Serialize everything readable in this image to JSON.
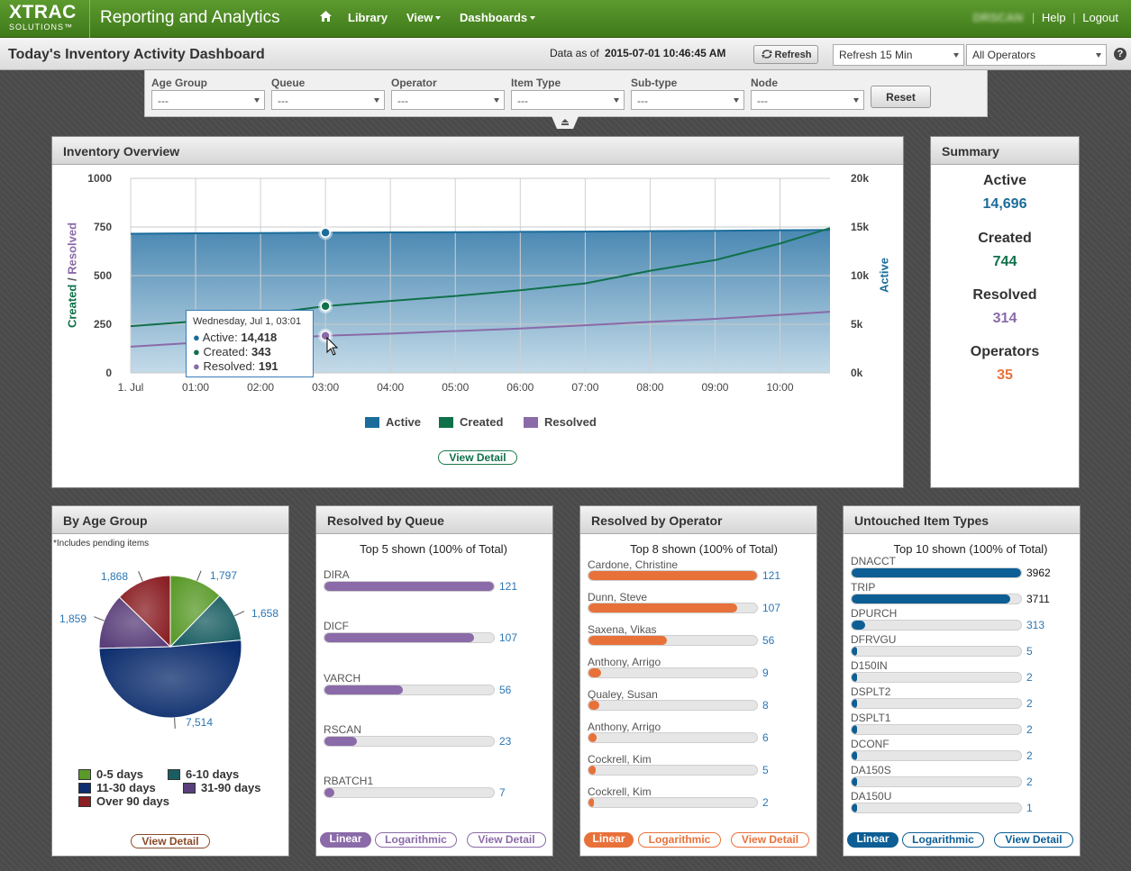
{
  "brand": {
    "line1": "XTRAC",
    "line2": "SOLUTIONS™"
  },
  "app_title": "Reporting and Analytics",
  "nav": {
    "home_icon": "home-icon",
    "library": "Library",
    "view": "View",
    "dashboards": "Dashboards"
  },
  "user": {
    "name": "DRSCAN",
    "help": "Help",
    "logout": "Logout"
  },
  "page_title": "Today's Inventory Activity Dashboard",
  "data_as_of": {
    "label": "Data as of",
    "value": "2015-07-01 10:46:45 AM"
  },
  "refresh_button": "Refresh",
  "refresh_interval": "Refresh 15 Min",
  "operators_select": "All Operators",
  "help_icon": "?",
  "filters": [
    {
      "label": "Age Group",
      "value": "---"
    },
    {
      "label": "Queue",
      "value": "---"
    },
    {
      "label": "Operator",
      "value": "---"
    },
    {
      "label": "Item Type",
      "value": "---"
    },
    {
      "label": "Sub-type",
      "value": "---"
    },
    {
      "label": "Node",
      "value": "---"
    }
  ],
  "reset_button": "Reset",
  "overview": {
    "title": "Inventory Overview",
    "left_axis_label_a": "Created",
    "left_axis_label_sep": " / ",
    "left_axis_label_b": "Resolved",
    "right_axis_label": "Active",
    "left_ticks": [
      "1000",
      "750",
      "500",
      "250",
      "0"
    ],
    "right_ticks": [
      "20k",
      "15k",
      "10k",
      "5k",
      "0k"
    ],
    "x_ticks": [
      "1. Jul",
      "01:00",
      "02:00",
      "03:00",
      "04:00",
      "05:00",
      "06:00",
      "07:00",
      "08:00",
      "09:00",
      "10:00"
    ],
    "legend": [
      "Active",
      "Created",
      "Resolved"
    ],
    "tooltip": {
      "date": "Wednesday, Jul 1, 03:01",
      "active_label": "Active:",
      "active_value": "14,418",
      "created_label": "Created:",
      "created_value": "343",
      "resolved_label": "Resolved:",
      "resolved_value": "191"
    },
    "view_detail": "View Detail"
  },
  "chart_data": [
    {
      "type": "line",
      "x": [
        "00:00",
        "01:00",
        "02:00",
        "03:00",
        "04:00",
        "05:00",
        "06:00",
        "07:00",
        "08:00",
        "09:00",
        "10:00",
        "10:46"
      ],
      "series": [
        {
          "name": "Active",
          "axis": "right",
          "type": "area",
          "values": [
            14300,
            14350,
            14380,
            14418,
            14440,
            14470,
            14500,
            14530,
            14570,
            14610,
            14660,
            14696
          ]
        },
        {
          "name": "Created",
          "axis": "left",
          "values": [
            240,
            265,
            300,
            343,
            370,
            395,
            425,
            460,
            525,
            580,
            665,
            744
          ]
        },
        {
          "name": "Resolved",
          "axis": "left",
          "values": [
            135,
            155,
            172,
            191,
            202,
            215,
            228,
            245,
            262,
            278,
            298,
            314
          ]
        }
      ],
      "ylim_left": [
        0,
        1000
      ],
      "ylim_right": [
        0,
        20000
      ],
      "colors": {
        "Active": "#1b6c9b",
        "Created": "#10704a",
        "Resolved": "#8a6aa8"
      },
      "grid": true,
      "legend": "bottom"
    },
    {
      "type": "pie",
      "title": "By Age Group",
      "categories": [
        "0-5 days",
        "6-10 days",
        "11-30 days",
        "31-90 days",
        "Over 90 days"
      ],
      "values": [
        1797,
        1658,
        7514,
        1859,
        1868
      ],
      "colors": [
        "#5a9a2a",
        "#1a5e63",
        "#0d2e6e",
        "#5a3f7a",
        "#8a1f24"
      ]
    },
    {
      "type": "bar",
      "title": "Resolved by Queue",
      "categories": [
        "DIRA",
        "DICF",
        "VARCH",
        "RSCAN",
        "RBATCH1"
      ],
      "values": [
        121,
        107,
        56,
        23,
        7
      ],
      "color": "#8a6aa8"
    },
    {
      "type": "bar",
      "title": "Resolved by Operator",
      "categories": [
        "Cardone, Christine",
        "Dunn, Steve",
        "Saxena, Vikas",
        "Anthony, Arrigo",
        "Qualey, Susan",
        "Anthony, Arrigo",
        "Cockrell, Kim",
        "Cockrell, Kim"
      ],
      "values": [
        121,
        107,
        56,
        9,
        8,
        6,
        5,
        2
      ],
      "color": "#e8713a"
    },
    {
      "type": "bar",
      "title": "Untouched Item Types",
      "categories": [
        "DNACCT",
        "TRIP",
        "DPURCH",
        "DFRVGU",
        "D150IN",
        "DSPLT2",
        "DSPLT1",
        "DCONF",
        "DA150S",
        "DA150U"
      ],
      "values": [
        3962,
        3711,
        313,
        5,
        2,
        2,
        2,
        2,
        2,
        1
      ],
      "color": "#0d5e94"
    }
  ],
  "summary": {
    "title": "Summary",
    "items": [
      {
        "label": "Active",
        "value": "14,696"
      },
      {
        "label": "Created",
        "value": "744"
      },
      {
        "label": "Resolved",
        "value": "314"
      },
      {
        "label": "Operators",
        "value": "35"
      }
    ]
  },
  "age_group": {
    "title": "By Age Group",
    "note": "*Includes pending items",
    "slice_labels": [
      "1,797",
      "1,658",
      "7,514",
      "1,859",
      "1,868"
    ],
    "legend": [
      "0-5 days",
      "6-10 days",
      "11-30 days",
      "31-90 days",
      "Over 90 days"
    ],
    "view_detail": "View Detail"
  },
  "queue": {
    "title": "Resolved by Queue",
    "subtitle": "Top 5 shown (100% of Total)",
    "linear": "Linear",
    "log": "Logarithmic",
    "view_detail": "View Detail"
  },
  "operator": {
    "title": "Resolved by Operator",
    "subtitle": "Top 8 shown (100% of Total)",
    "linear": "Linear",
    "log": "Logarithmic",
    "view_detail": "View Detail"
  },
  "item_types": {
    "title": "Untouched Item Types",
    "subtitle": "Top 10 shown (100% of Total)",
    "linear": "Linear",
    "log": "Logarithmic",
    "view_detail": "View Detail"
  }
}
